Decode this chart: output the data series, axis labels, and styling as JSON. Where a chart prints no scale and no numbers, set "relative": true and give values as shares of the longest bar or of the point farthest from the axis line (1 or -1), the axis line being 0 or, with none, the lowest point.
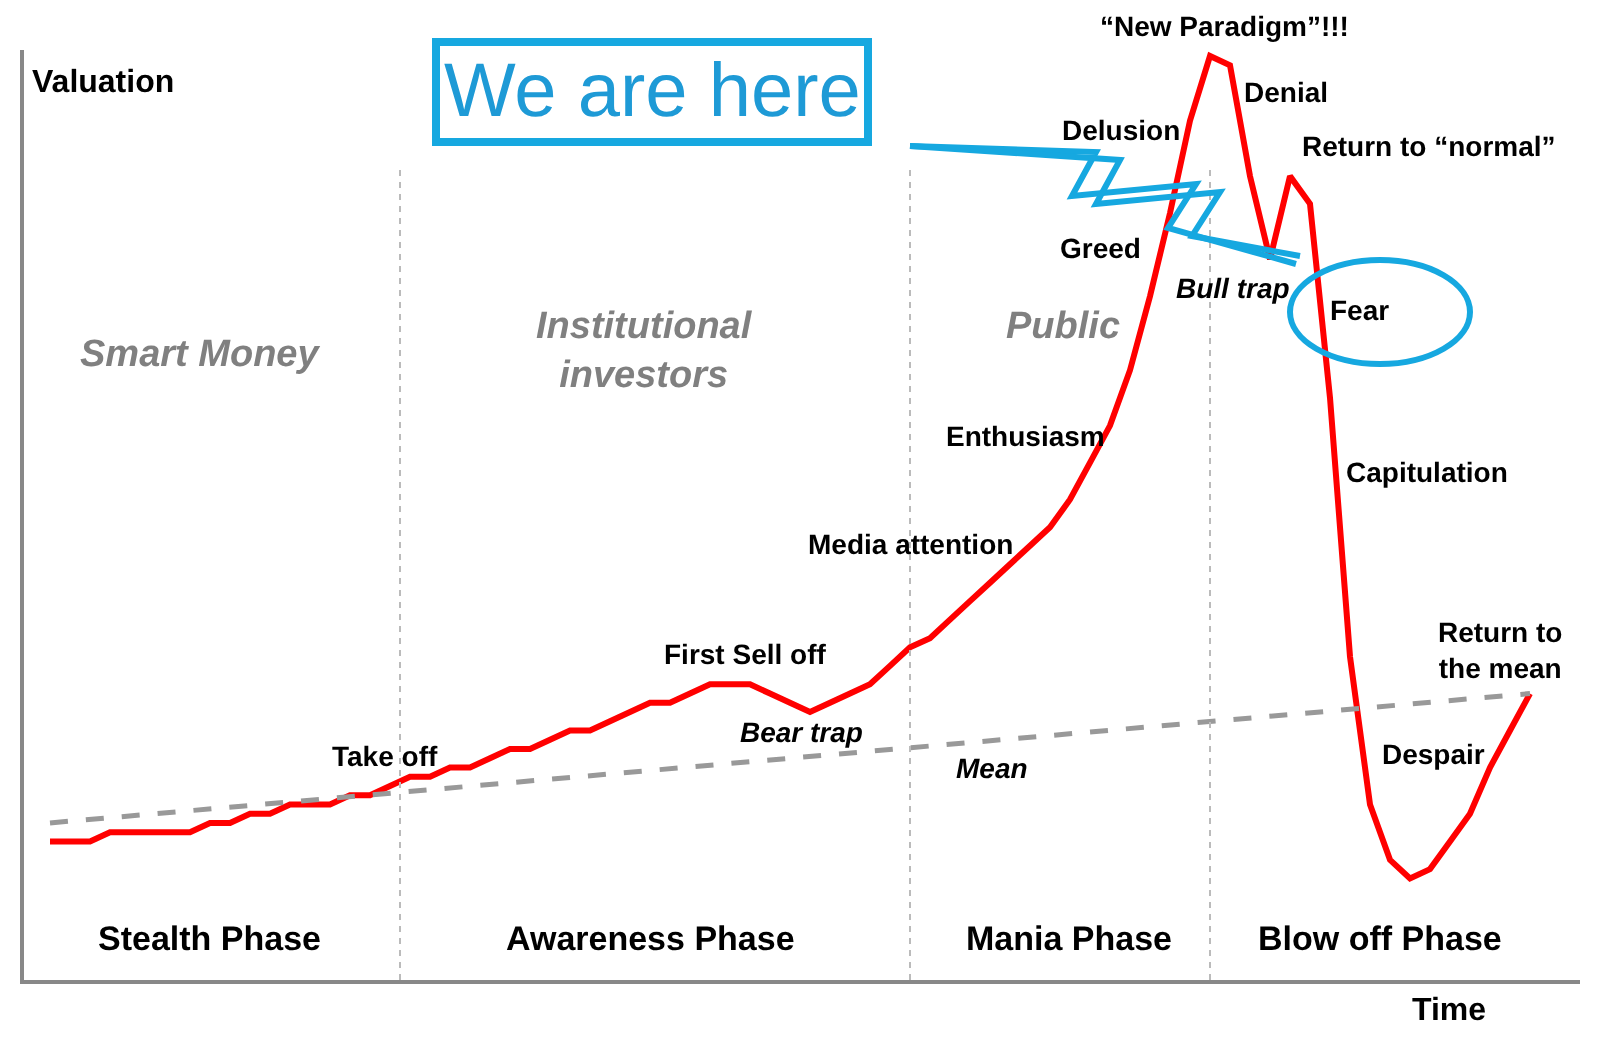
{
  "chart_data": {
    "type": "line",
    "relative": true,
    "xlabel": "Time",
    "ylabel": "Valuation",
    "categories": [
      null,
      null,
      null,
      null,
      null,
      null,
      null,
      null,
      null,
      null,
      null,
      null,
      null,
      null,
      null,
      null,
      null,
      null,
      null,
      null,
      null,
      null,
      null,
      null,
      null,
      null,
      null,
      null,
      null,
      null,
      null,
      null,
      null,
      null,
      null,
      null,
      null,
      null,
      null,
      null,
      null,
      null,
      null,
      null,
      null,
      null,
      null,
      null,
      null,
      null,
      null,
      null,
      null,
      null,
      null,
      null,
      null,
      null,
      null,
      null,
      null,
      null,
      null,
      null,
      null,
      null,
      null,
      null,
      null,
      null,
      null,
      null,
      null,
      null,
      null
    ],
    "series": [
      {
        "color": "#ff0000",
        "line_style": "solid",
        "values": [
          0.15,
          0.15,
          0.15,
          0.16,
          0.16,
          0.16,
          0.16,
          0.16,
          0.17,
          0.17,
          0.18,
          0.18,
          0.19,
          0.19,
          0.19,
          0.2,
          0.2,
          0.21,
          0.22,
          0.22,
          0.23,
          0.23,
          0.24,
          0.25,
          0.25,
          0.26,
          0.27,
          0.27,
          0.28,
          0.29,
          0.3,
          0.3,
          0.31,
          0.32,
          0.32,
          0.32,
          0.31,
          0.3,
          0.29,
          0.3,
          0.31,
          0.32,
          0.34,
          0.36,
          0.37,
          0.39,
          0.41,
          0.43,
          0.45,
          0.47,
          0.49,
          0.52,
          0.56,
          0.6,
          0.66,
          0.74,
          0.83,
          0.93,
          1,
          0.99,
          0.87,
          0.78,
          0.87,
          0.84,
          0.63,
          0.35,
          0.19,
          0.13,
          0.11,
          0.12,
          0.15,
          0.18,
          0.23,
          0.27,
          0.31
        ]
      },
      {
        "color": "#999999",
        "line_style": "dashed",
        "values": [
          0.17,
          null,
          null,
          null,
          null,
          null,
          null,
          null,
          null,
          null,
          null,
          null,
          null,
          null,
          null,
          null,
          null,
          null,
          null,
          null,
          null,
          null,
          null,
          null,
          null,
          null,
          null,
          null,
          null,
          null,
          null,
          null,
          null,
          null,
          null,
          null,
          null,
          null,
          null,
          null,
          null,
          null,
          null,
          null,
          null,
          null,
          null,
          null,
          null,
          null,
          null,
          null,
          null,
          null,
          null,
          null,
          null,
          null,
          null,
          null,
          null,
          null,
          null,
          null,
          null,
          null,
          null,
          null,
          null,
          null,
          null,
          null,
          null,
          null,
          0.31
        ]
      }
    ],
    "annotations": [
      "Smart Money",
      "Institutional\ninvestors",
      "Public",
      "Take off",
      "First Sell off",
      "Bear trap",
      "Mean",
      "Media attention",
      "Enthusiasm",
      "Greed",
      "Delusion",
      "“New Paradigm”!!!",
      "Denial",
      "Bull trap",
      "Return to “normal”",
      "Fear",
      "Capitulation",
      "Despair",
      "Return to\nthe mean",
      "Stealth Phase",
      "Awareness Phase",
      "Mania Phase",
      "Blow off Phase",
      "We are here"
    ],
    "marker": "none"
  }
}
